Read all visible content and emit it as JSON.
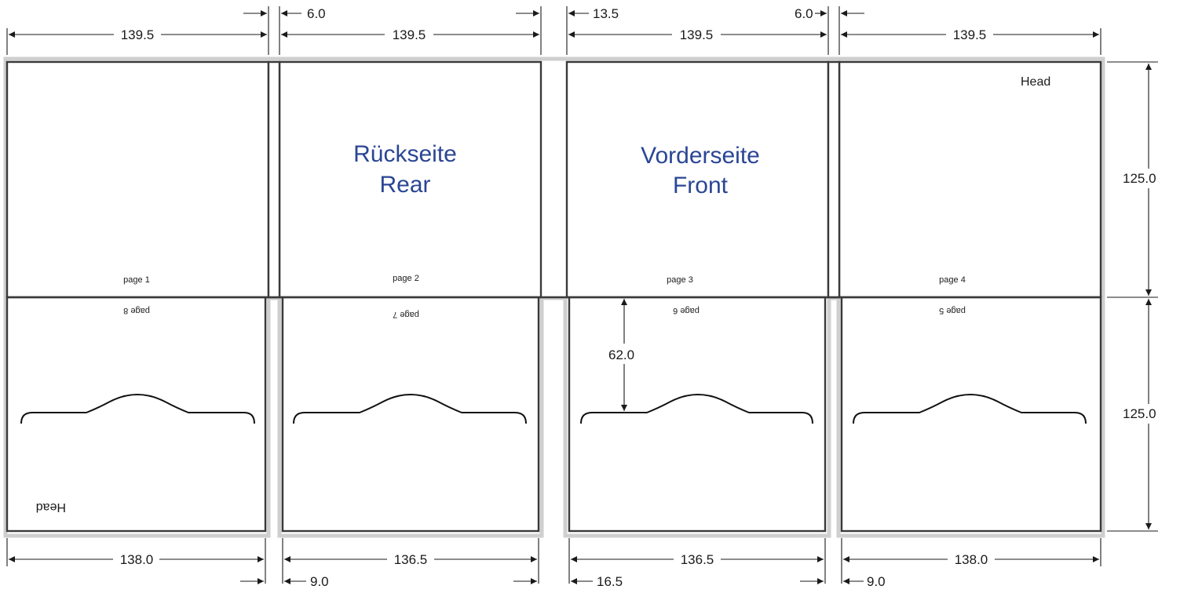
{
  "dimensions": {
    "top_width_1": "139.5",
    "top_gap_1": "6.0",
    "top_width_2": "139.5",
    "top_gap_2a": "13.5",
    "top_width_3": "139.5",
    "top_gap_3": "6.0",
    "top_width_4": "139.5",
    "height_upper": "125.0",
    "height_lower": "125.0",
    "flap_depth": "62.0",
    "bottom_width_1": "138.0",
    "bottom_gap_1": "9.0",
    "bottom_width_2": "136.5",
    "bottom_gap_2": "16.5",
    "bottom_width_3": "136.5",
    "bottom_gap_3": "9.0",
    "bottom_width_4": "138.0"
  },
  "pages": {
    "page1": "page 1",
    "page2": "page 2",
    "page3": "page 3",
    "page4": "page 4",
    "page5": "page 5",
    "page6": "page 6",
    "page7": "page 7",
    "page8": "page 8"
  },
  "labels": {
    "head_top": "Head",
    "head_bottom": "Head",
    "rear_de": "Rückseite",
    "rear_en": "Rear",
    "front_de": "Vorderseite",
    "front_en": "Front"
  },
  "colors": {
    "accent_text": "#2a4694",
    "panel_outline": "#3a3a3a",
    "bleed_outline": "#cfcfcf"
  }
}
